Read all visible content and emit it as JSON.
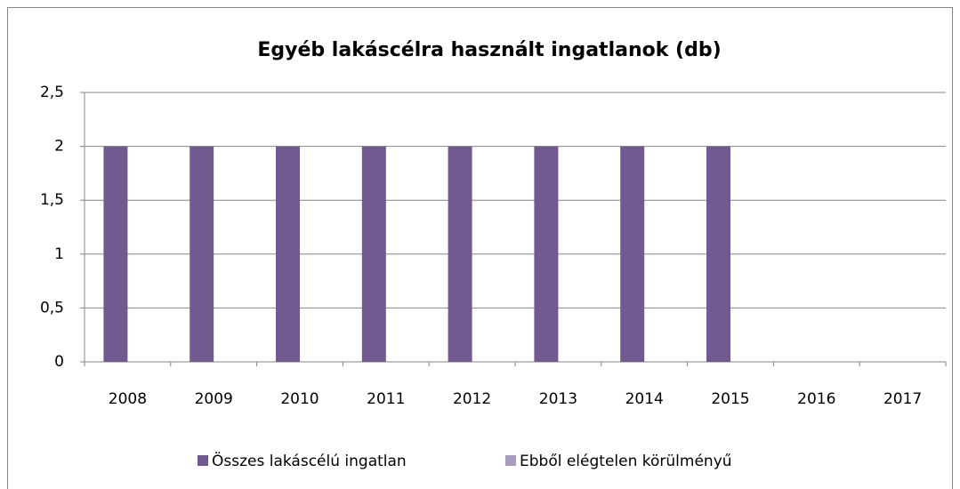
{
  "chart_data": {
    "type": "bar",
    "title": "Egyéb lakáscélra használt ingatlanok (db)",
    "categories": [
      "2008",
      "2009",
      "2010",
      "2011",
      "2012",
      "2013",
      "2014",
      "2015",
      "2016",
      "2017"
    ],
    "series": [
      {
        "name": "Összes lakáscélú ingatlan",
        "color": "#725990",
        "values": [
          2,
          2,
          2,
          2,
          2,
          2,
          2,
          2,
          0,
          0
        ]
      },
      {
        "name": "Ebből elégtelen körülményű",
        "color": "#a99bbd",
        "values": [
          0,
          0,
          0,
          0,
          0,
          0,
          0,
          0,
          0,
          0
        ]
      }
    ],
    "ylim": [
      0,
      2.5
    ],
    "yticks": [
      0,
      {
        "value": 0.5,
        "label": "0,5"
      },
      1,
      {
        "value": 1.5,
        "label": "1,5"
      },
      2,
      {
        "value": 2.5,
        "label": "2,5"
      }
    ],
    "grid": true,
    "legend": "bottom"
  }
}
